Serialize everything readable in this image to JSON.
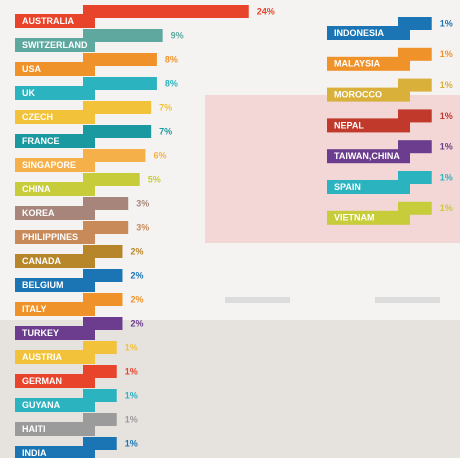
{
  "chart_data": [
    {
      "type": "ribbon-bar",
      "categories": [
        "AUSTRALIA",
        "SWITZERLAND",
        "USA",
        "UK",
        "CZECH",
        "FRANCE",
        "SINGAPORE",
        "CHINA",
        "KOREA",
        "PHILIPPINES",
        "CANADA",
        "BELGIUM",
        "ITALY",
        "TURKEY",
        "AUSTRIA",
        "GERMAN",
        "GUYANA",
        "HAITI",
        "INDIA"
      ],
      "values": [
        24,
        9,
        8,
        8,
        7,
        7,
        6,
        5,
        3,
        3,
        2,
        2,
        2,
        2,
        1,
        1,
        1,
        1,
        1
      ],
      "value_labels": [
        "24%",
        "9%",
        "8%",
        "8%",
        "7%",
        "7%",
        "6%",
        "5%",
        "3%",
        "3%",
        "2%",
        "2%",
        "2%",
        "2%",
        "1%",
        "1%",
        "1%",
        "1%",
        "1%"
      ],
      "colors": [
        "#e8442b",
        "#5ea8a0",
        "#f0922a",
        "#2bb3c0",
        "#f2c23a",
        "#1a9aa0",
        "#f5b04a",
        "#c7cc3a",
        "#a8857a",
        "#c98a5a",
        "#b8862a",
        "#1b75b5",
        "#f0922a",
        "#6c3d8e",
        "#f2c23a",
        "#e8442b",
        "#2bb3c0",
        "#9b9b9b",
        "#1b75b5"
      ]
    },
    {
      "type": "ribbon-bar",
      "categories": [
        "INDONESIA",
        "MALAYSIA",
        "MOROCCO",
        "NEPAL",
        "TAIWAN,CHINA",
        "SPAIN",
        "VIETNAM"
      ],
      "values": [
        1,
        1,
        1,
        1,
        1,
        1,
        1
      ],
      "value_labels": [
        "1%",
        "1%",
        "1%",
        "1%",
        "1%",
        "1%",
        "1%"
      ],
      "colors": [
        "#1b75b5",
        "#f0922a",
        "#d8b03a",
        "#c0392b",
        "#6c3d8e",
        "#2bb3c0",
        "#c7cc3a"
      ]
    }
  ]
}
